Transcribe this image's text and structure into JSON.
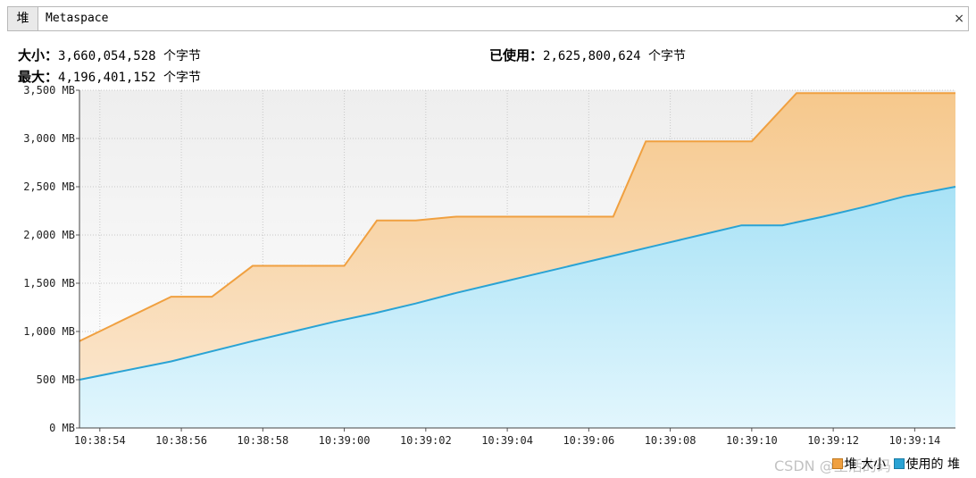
{
  "tabs": [
    "堆",
    "Metaspace"
  ],
  "close_icon": "×",
  "info": {
    "size_label": "大小：",
    "size_value": "3,660,054,528 个字节",
    "max_label": "最大：",
    "max_value": "4,196,401,152 个字节",
    "used_label": "已使用：",
    "used_value": "2,625,800,624 个字节"
  },
  "legend": {
    "heap_size": "堆 大小",
    "used_heap": "使用的 堆"
  },
  "watermark": "CSDN @生活的码",
  "colors": {
    "heap_size_line": "#f0a040",
    "heap_size_fill": "#f6d4a4",
    "used_heap_line": "#2aa3d4",
    "used_heap_fill": "#b8e8f8",
    "plot_background": "#eeeeee"
  },
  "chart_data": {
    "type": "area",
    "ylim": [
      0,
      3500
    ],
    "yticks": [
      0,
      500,
      1000,
      1500,
      2000,
      2500,
      3000,
      3500
    ],
    "ytick_labels": [
      "0 MB",
      "500 MB",
      "1,000 MB",
      "1,500 MB",
      "2,000 MB",
      "2,500 MB",
      "3,000 MB",
      "3,500 MB"
    ],
    "xlim": [
      0,
      21.5
    ],
    "xticks": [
      0.5,
      2.5,
      4.5,
      6.5,
      8.5,
      10.5,
      12.5,
      14.5,
      16.5,
      18.5,
      20.5
    ],
    "xtick_labels": [
      "10:38:54",
      "10:38:56",
      "10:38:58",
      "10:39:00",
      "10:39:02",
      "10:39:04",
      "10:39:06",
      "10:39:08",
      "10:39:10",
      "10:39:12",
      "10:39:14"
    ],
    "grid": true,
    "legend_position": "bottom-right",
    "series": [
      {
        "name": "堆 大小",
        "x": [
          0,
          2.25,
          3.25,
          4.25,
          6.5,
          7.3,
          8.25,
          9.25,
          13.1,
          13.9,
          16.5,
          17.6,
          21.5
        ],
        "values": [
          900,
          1360,
          1360,
          1680,
          1680,
          2150,
          2150,
          2190,
          2190,
          2970,
          2970,
          3470,
          3470
        ]
      },
      {
        "name": "使用的 堆",
        "x": [
          0,
          2.25,
          4.25,
          5.25,
          6.25,
          7.25,
          8.25,
          9.25,
          10.25,
          11.25,
          12.25,
          13.25,
          14.25,
          15.25,
          16.25,
          17.25,
          18.25,
          19.25,
          20.25,
          21.5
        ],
        "values": [
          500,
          690,
          900,
          1000,
          1100,
          1190,
          1290,
          1400,
          1500,
          1600,
          1700,
          1800,
          1900,
          2000,
          2100,
          2100,
          2190,
          2290,
          2400,
          2500
        ]
      }
    ]
  }
}
